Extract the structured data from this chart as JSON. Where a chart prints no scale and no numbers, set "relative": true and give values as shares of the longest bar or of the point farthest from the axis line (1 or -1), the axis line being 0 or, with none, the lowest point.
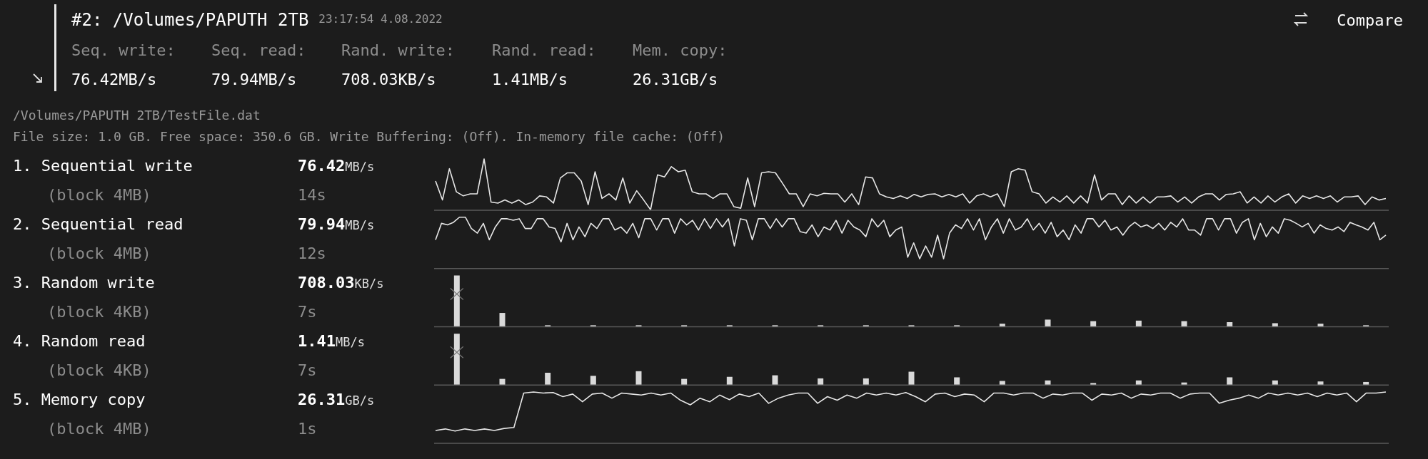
{
  "chart_data": [
    {
      "type": "other",
      "title": "#2: /Volumes/PAPUTH 2TB",
      "subtitle": "23:17:54 4.08.2022",
      "annotations": [
        "Seq. write:",
        "Seq. read:",
        "Rand. write:",
        "Rand. read:",
        "Mem. copy:",
        "76.42MB/s",
        "79.94MB/s",
        "708.03KB/s",
        "1.41MB/s",
        "26.31GB/s",
        "/Volumes/PAPUTH 2TB/TestFile.dat",
        "File size: 1.0 GB. Free space: 350.6 GB. Write Buffering: (Off). In-memory file cache: (Off)",
        "Compare"
      ]
    },
    {
      "type": "line",
      "ylabel": "1. Sequential write",
      "annotations": [
        "76.42MB/s",
        "14s",
        "(block 4MB)"
      ],
      "relative": true,
      "color": "#e6e6e6",
      "categories": [
        null,
        null,
        null,
        null,
        null,
        null,
        null,
        null,
        null,
        null,
        null,
        null,
        null,
        null,
        null,
        null,
        null,
        null,
        null,
        null,
        null,
        null,
        null,
        null,
        null,
        null,
        null,
        null,
        null,
        null,
        null,
        null,
        null,
        null,
        null,
        null,
        null,
        null,
        null,
        null,
        null,
        null,
        null,
        null,
        null,
        null,
        null,
        null,
        null,
        null,
        null,
        null,
        null,
        null,
        null,
        null,
        null,
        null,
        null,
        null,
        null,
        null,
        null,
        null,
        null,
        null,
        null,
        null,
        null,
        null,
        null,
        null,
        null,
        null,
        null,
        null,
        null,
        null,
        null,
        null,
        null,
        null,
        null,
        null,
        null,
        null,
        null,
        null,
        null,
        null,
        null,
        null,
        null,
        null,
        null,
        null,
        null,
        null,
        null,
        null,
        null,
        null,
        null,
        null,
        null,
        null,
        null,
        null,
        null,
        null,
        null,
        null,
        null,
        null,
        null,
        null,
        null,
        null,
        null,
        null,
        null,
        null,
        null,
        null,
        null,
        null,
        null,
        null,
        null,
        null,
        null,
        null,
        null,
        null,
        null,
        null,
        null,
        null
      ],
      "values": [
        0.57,
        0.2,
        0.81,
        0.36,
        0.28,
        0.32,
        0.32,
        1,
        0.16,
        0.14,
        0.2,
        0.14,
        0.2,
        0.11,
        0.16,
        0.28,
        0.26,
        0.14,
        0.63,
        0.73,
        0.73,
        0.57,
        0.11,
        0.75,
        0.23,
        0.32,
        0.2,
        0.63,
        0.14,
        0.38,
        0.2,
        0.01,
        0.69,
        0.65,
        0.85,
        0.75,
        0.78,
        0.36,
        0.32,
        0.32,
        0.23,
        0.32,
        0.32,
        0.07,
        0.04,
        0.63,
        0.07,
        0.73,
        0.75,
        0.73,
        0.53,
        0.32,
        0.32,
        0.07,
        0.32,
        0.28,
        0.33,
        0.32,
        0.32,
        0.16,
        0.32,
        0.11,
        0.65,
        0.63,
        0.32,
        0.26,
        0.23,
        0.28,
        0.23,
        0.31,
        0.26,
        0.31,
        0.32,
        0.26,
        0.31,
        0.26,
        0.32,
        0.14,
        0.28,
        0.32,
        0.26,
        0.32,
        0.07,
        0.75,
        0.81,
        0.78,
        0.36,
        0.32,
        0.14,
        0.26,
        0.16,
        0.28,
        0.14,
        0.28,
        0.14,
        0.69,
        0.2,
        0.32,
        0.32,
        0.11,
        0.28,
        0.14,
        0.26,
        0.14,
        0.26,
        0.26,
        0.28,
        0.16,
        0.26,
        0.14,
        0.26,
        0.32,
        0.32,
        0.2,
        0.31,
        0.32,
        0.36,
        0.14,
        0.26,
        0.14,
        0.28,
        0.16,
        0.26,
        0.32,
        0.14,
        0.28,
        0.23,
        0.28,
        0.23,
        0.28,
        0.16,
        0.26,
        0.26,
        0.28,
        0.11,
        0.26,
        0.2,
        0.23
      ]
    },
    {
      "type": "line",
      "ylabel": "2. Sequential read",
      "annotations": [
        "79.94MB/s",
        "12s",
        "(block 4MB)"
      ],
      "relative": true,
      "color": "#e6e6e6",
      "categories": [
        null,
        null,
        null,
        null,
        null,
        null,
        null,
        null,
        null,
        null,
        null,
        null,
        null,
        null,
        null,
        null,
        null,
        null,
        null,
        null,
        null,
        null,
        null,
        null,
        null,
        null,
        null,
        null,
        null,
        null,
        null,
        null,
        null,
        null,
        null,
        null,
        null,
        null,
        null,
        null,
        null,
        null,
        null,
        null,
        null,
        null,
        null,
        null,
        null,
        null,
        null,
        null,
        null,
        null,
        null,
        null,
        null,
        null,
        null,
        null,
        null,
        null,
        null,
        null,
        null,
        null,
        null,
        null,
        null,
        null,
        null,
        null,
        null,
        null,
        null,
        null,
        null,
        null,
        null,
        null,
        null,
        null,
        null,
        null,
        null,
        null,
        null,
        null,
        null,
        null,
        null,
        null,
        null,
        null,
        null,
        null,
        null,
        null,
        null,
        null,
        null,
        null,
        null,
        null,
        null,
        null,
        null,
        null,
        null,
        null,
        null,
        null,
        null,
        null,
        null,
        null,
        null,
        null,
        null,
        null,
        null,
        null,
        null,
        null,
        null,
        null,
        null,
        null,
        null,
        null,
        null,
        null,
        null,
        null,
        null,
        null,
        null,
        null,
        null,
        null,
        null,
        null,
        null,
        null,
        null,
        null,
        null,
        null,
        null,
        null,
        null,
        null,
        null,
        null,
        null,
        null,
        null,
        null,
        null,
        null
      ],
      "values": [
        0.56,
        0.88,
        0.85,
        0.9,
        1,
        1,
        0.78,
        0.69,
        0.88,
        0.56,
        0.81,
        0.97,
        0.97,
        0.94,
        0.97,
        0.78,
        0.78,
        0.97,
        0.97,
        0.81,
        0.78,
        0.52,
        0.88,
        0.56,
        0.81,
        0.62,
        0.88,
        0.78,
        0.97,
        0.97,
        0.75,
        0.81,
        0.69,
        0.88,
        0.6,
        0.97,
        0.97,
        0.75,
        0.97,
        0.97,
        0.69,
        0.97,
        0.85,
        0.94,
        0.75,
        0.97,
        0.78,
        0.97,
        0.81,
        0.97,
        0.44,
        0.97,
        0.94,
        0.56,
        0.97,
        0.97,
        0.78,
        0.97,
        0.81,
        0.97,
        0.97,
        0.72,
        0.69,
        0.85,
        0.62,
        0.81,
        0.75,
        0.94,
        0.69,
        0.94,
        0.81,
        0.75,
        0.62,
        0.97,
        0.81,
        0.94,
        0.62,
        0.75,
        0.81,
        0.22,
        0.5,
        0.19,
        0.44,
        0.22,
        0.65,
        0.19,
        0.69,
        0.85,
        0.78,
        0.97,
        0.75,
        0.97,
        0.56,
        0.81,
        0.97,
        0.69,
        0.97,
        0.75,
        0.81,
        0.97,
        0.75,
        0.88,
        0.69,
        0.9,
        0.62,
        0.75,
        0.56,
        0.85,
        0.69,
        0.97,
        0.97,
        0.81,
        0.94,
        0.75,
        0.81,
        0.65,
        0.81,
        0.9,
        0.81,
        0.85,
        0.78,
        0.88,
        0.75,
        0.9,
        0.81,
        0.97,
        0.75,
        0.75,
        0.65,
        0.97,
        0.97,
        0.75,
        0.97,
        0.97,
        0.69,
        0.9,
        0.97,
        0.56,
        0.88,
        0.62,
        0.81,
        0.69,
        0.97,
        0.94,
        0.88,
        0.81,
        0.88,
        0.69,
        0.85,
        0.78,
        0.75,
        0.81,
        0.72,
        0.9,
        0.85,
        0.81,
        0.75,
        0.9,
        0.56,
        0.65
      ]
    },
    {
      "type": "bar",
      "ylabel": "3. Random write",
      "annotations": [
        "708.03KB/s",
        "7s",
        "(block 4KB)"
      ],
      "relative": true,
      "color": "#d9d9d9",
      "categories": [
        null,
        null,
        null,
        null,
        null,
        null,
        null,
        null,
        null,
        null,
        null,
        null,
        null,
        null,
        null,
        null,
        null,
        null,
        null,
        null,
        null
      ],
      "values": [
        1,
        0.27,
        0.03,
        0.03,
        0.03,
        0.03,
        0.03,
        0.03,
        0.03,
        0.03,
        0.03,
        0.03,
        0.06,
        0.14,
        0.11,
        0.12,
        0.11,
        0.09,
        0.07,
        0.06,
        0.03
      ]
    },
    {
      "type": "bar",
      "ylabel": "4. Random read",
      "annotations": [
        "1.41MB/s",
        "7s",
        "(block 4KB)"
      ],
      "relative": true,
      "color": "#d9d9d9",
      "categories": [
        null,
        null,
        null,
        null,
        null,
        null,
        null,
        null,
        null,
        null,
        null,
        null,
        null,
        null,
        null,
        null,
        null,
        null,
        null,
        null,
        null
      ],
      "values": [
        1,
        0.12,
        0.24,
        0.18,
        0.27,
        0.12,
        0.16,
        0.19,
        0.13,
        0.13,
        0.26,
        0.15,
        0.08,
        0.09,
        0.04,
        0.09,
        0.05,
        0.15,
        0.09,
        0.07,
        0.06
      ]
    },
    {
      "type": "line",
      "ylabel": "5. Memory copy",
      "annotations": [
        "26.31GB/s",
        "1s",
        "(block 4MB)"
      ],
      "relative": true,
      "color": "#e6e6e6",
      "categories": [
        null,
        null,
        null,
        null,
        null,
        null,
        null,
        null,
        null,
        null,
        null,
        null,
        null,
        null,
        null,
        null,
        null,
        null,
        null,
        null,
        null,
        null,
        null,
        null,
        null,
        null,
        null,
        null,
        null,
        null,
        null,
        null,
        null,
        null,
        null,
        null,
        null,
        null,
        null,
        null,
        null,
        null,
        null,
        null,
        null,
        null,
        null,
        null,
        null,
        null,
        null,
        null,
        null,
        null,
        null,
        null,
        null,
        null,
        null,
        null,
        null,
        null,
        null,
        null,
        null,
        null,
        null,
        null,
        null,
        null,
        null,
        null,
        null,
        null,
        null,
        null,
        null,
        null,
        null,
        null,
        null,
        null,
        null,
        null,
        null,
        null,
        null,
        null,
        null,
        null,
        null,
        null,
        null,
        null,
        null,
        null,
        null,
        null
      ],
      "values": [
        0.25,
        0.28,
        0.24,
        0.28,
        0.25,
        0.28,
        0.25,
        0.29,
        0.31,
        0.98,
        1,
        0.98,
        0.99,
        0.91,
        0.96,
        0.81,
        0.96,
        0.98,
        0.88,
        0.98,
        0.96,
        0.94,
        0.98,
        0.94,
        0.98,
        0.84,
        0.75,
        0.88,
        0.81,
        0.94,
        0.85,
        0.96,
        0.91,
        0.98,
        0.78,
        0.88,
        0.94,
        0.98,
        0.98,
        0.78,
        0.91,
        0.84,
        0.94,
        0.88,
        0.98,
        0.94,
        0.98,
        0.94,
        0.99,
        0.91,
        0.81,
        0.96,
        0.98,
        0.91,
        0.96,
        0.94,
        0.81,
        0.98,
        0.98,
        0.94,
        0.98,
        0.98,
        0.88,
        0.96,
        0.94,
        0.98,
        0.98,
        0.84,
        0.96,
        0.94,
        0.98,
        0.88,
        0.96,
        0.94,
        0.98,
        0.98,
        0.88,
        0.96,
        0.98,
        0.98,
        0.78,
        0.84,
        0.88,
        0.94,
        0.88,
        0.98,
        0.94,
        0.98,
        0.94,
        0.98,
        0.91,
        0.98,
        0.94,
        0.98,
        0.81,
        0.98,
        0.98,
        1
      ]
    }
  ]
}
